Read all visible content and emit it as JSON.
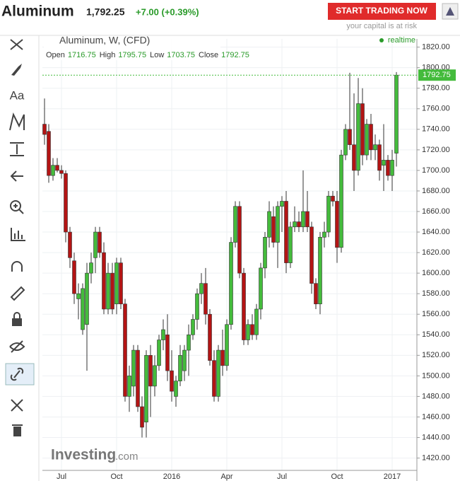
{
  "header": {
    "instrument": "Aluminum",
    "price": "1,792.25",
    "change": "+7.00 (+0.39%)",
    "button": "START TRADING NOW",
    "risk": "your capital is at risk"
  },
  "toolbar": {
    "text_tool": "Aa"
  },
  "chart_data": {
    "type": "candlestick",
    "title": "Aluminum, W, (CFD)",
    "status": "realtime",
    "watermark": "Investing",
    "watermark_suffix": ".com",
    "legend": [
      {
        "label": "Open",
        "value": 1716.75
      },
      {
        "label": "High",
        "value": 1795.75
      },
      {
        "label": "Low",
        "value": 1703.75
      },
      {
        "label": "Close",
        "value": 1792.75
      }
    ],
    "categories": [
      null,
      null,
      null,
      null,
      "Jul",
      null,
      null,
      null,
      null,
      null,
      null,
      null,
      null,
      null,
      null,
      null,
      null,
      "Oct",
      null,
      null,
      null,
      null,
      null,
      null,
      null,
      null,
      null,
      null,
      null,
      null,
      "2016",
      null,
      null,
      null,
      null,
      null,
      null,
      null,
      null,
      null,
      null,
      null,
      null,
      "Apr",
      null,
      null,
      null,
      null,
      null,
      null,
      null,
      null,
      null,
      null,
      null,
      null,
      "Jul",
      null,
      null,
      null,
      null,
      null,
      null,
      null,
      null,
      null,
      null,
      null,
      null,
      "Oct",
      null,
      null,
      null,
      null,
      null,
      null,
      null,
      null,
      null,
      null,
      null,
      null,
      "2017",
      null
    ],
    "open": [
      1745,
      1738,
      1695,
      1705,
      1700,
      1697,
      1640,
      1612,
      1575,
      1545,
      1550,
      1600,
      1615,
      1640,
      1620,
      1565,
      1600,
      1570,
      1610,
      1570,
      1480,
      1490,
      1525,
      1470,
      1455,
      1520,
      1490,
      1510,
      1535,
      1540,
      1505,
      1480,
      1495,
      1505,
      1525,
      1540,
      1555,
      1580,
      1590,
      1560,
      1515,
      1480,
      1525,
      1510,
      1550,
      1630,
      1665,
      1600,
      1535,
      1550,
      1540,
      1565,
      1605,
      1635,
      1655,
      1630,
      1665,
      1670,
      1610,
      1645,
      1650,
      1645,
      1660,
      1645,
      1590,
      1570,
      1635,
      1640,
      1675,
      1670,
      1625,
      1715,
      1740,
      1725,
      1700,
      1765,
      1715,
      1745,
      1720,
      1725,
      1705,
      1710,
      1695,
      1716.75
    ],
    "high": [
      1770,
      1745,
      1712,
      1712,
      1705,
      1700,
      1645,
      1620,
      1590,
      1590,
      1610,
      1620,
      1645,
      1645,
      1630,
      1610,
      1610,
      1615,
      1615,
      1575,
      1510,
      1530,
      1530,
      1480,
      1525,
      1530,
      1520,
      1540,
      1555,
      1560,
      1525,
      1500,
      1530,
      1530,
      1550,
      1560,
      1585,
      1600,
      1605,
      1565,
      1525,
      1530,
      1545,
      1555,
      1635,
      1670,
      1670,
      1605,
      1555,
      1560,
      1570,
      1610,
      1640,
      1670,
      1665,
      1670,
      1675,
      1680,
      1650,
      1665,
      1660,
      1700,
      1680,
      1650,
      1595,
      1640,
      1650,
      1680,
      1680,
      1680,
      1720,
      1745,
      1795,
      1775,
      1790,
      1780,
      1750,
      1755,
      1735,
      1730,
      1745,
      1715,
      1720,
      1795.75
    ],
    "low": [
      1725,
      1688,
      1690,
      1698,
      1692,
      1630,
      1605,
      1570,
      1555,
      1540,
      1505,
      1590,
      1600,
      1615,
      1560,
      1560,
      1560,
      1560,
      1565,
      1475,
      1465,
      1480,
      1465,
      1440,
      1440,
      1460,
      1480,
      1505,
      1525,
      1495,
      1475,
      1470,
      1490,
      1495,
      1500,
      1535,
      1545,
      1570,
      1550,
      1510,
      1475,
      1475,
      1500,
      1505,
      1545,
      1625,
      1595,
      1530,
      1530,
      1535,
      1535,
      1555,
      1595,
      1625,
      1625,
      1605,
      1640,
      1600,
      1605,
      1640,
      1640,
      1640,
      1640,
      1580,
      1565,
      1560,
      1625,
      1635,
      1665,
      1610,
      1620,
      1710,
      1720,
      1680,
      1695,
      1705,
      1710,
      1710,
      1710,
      1690,
      1680,
      1690,
      1680,
      1703.75
    ],
    "close": [
      1735,
      1695,
      1705,
      1700,
      1697,
      1640,
      1615,
      1580,
      1580,
      1585,
      1600,
      1610,
      1640,
      1620,
      1565,
      1600,
      1565,
      1610,
      1570,
      1480,
      1500,
      1525,
      1470,
      1450,
      1520,
      1490,
      1510,
      1535,
      1545,
      1505,
      1485,
      1495,
      1520,
      1525,
      1540,
      1555,
      1580,
      1590,
      1560,
      1515,
      1480,
      1525,
      1510,
      1550,
      1630,
      1665,
      1600,
      1535,
      1550,
      1540,
      1565,
      1605,
      1635,
      1660,
      1630,
      1665,
      1670,
      1610,
      1645,
      1650,
      1645,
      1660,
      1645,
      1590,
      1570,
      1635,
      1640,
      1675,
      1670,
      1625,
      1715,
      1740,
      1725,
      1700,
      1765,
      1715,
      1745,
      1720,
      1725,
      1700,
      1710,
      1695,
      1710,
      1792.75
    ],
    "up_color": "#44bb3c",
    "down_color": "#b31414",
    "ylim": [
      1408,
      1828
    ],
    "yticks": [
      {
        "value": 1420,
        "label": "1420.00"
      },
      {
        "value": 1440,
        "label": "1440.00"
      },
      {
        "value": 1460,
        "label": "1460.00"
      },
      {
        "value": 1480,
        "label": "1480.00"
      },
      {
        "value": 1500,
        "label": "1500.00"
      },
      {
        "value": 1520,
        "label": "1520.00"
      },
      {
        "value": 1540,
        "label": "1540.00"
      },
      {
        "value": 1560,
        "label": "1560.00"
      },
      {
        "value": 1580,
        "label": "1580.00"
      },
      {
        "value": 1600,
        "label": "1600.00"
      },
      {
        "value": 1620,
        "label": "1620.00"
      },
      {
        "value": 1640,
        "label": "1640.00"
      },
      {
        "value": 1660,
        "label": "1660.00"
      },
      {
        "value": 1680,
        "label": "1680.00"
      },
      {
        "value": 1700,
        "label": "1700.00"
      },
      {
        "value": 1720,
        "label": "1720.00"
      },
      {
        "value": 1740,
        "label": "1740.00"
      },
      {
        "value": 1760,
        "label": "1760.00"
      },
      {
        "value": 1780,
        "label": "1780.00"
      },
      {
        "value": 1800,
        "label": "1800.00"
      },
      {
        "value": 1820,
        "label": "1820.00"
      }
    ],
    "grid": true
  }
}
